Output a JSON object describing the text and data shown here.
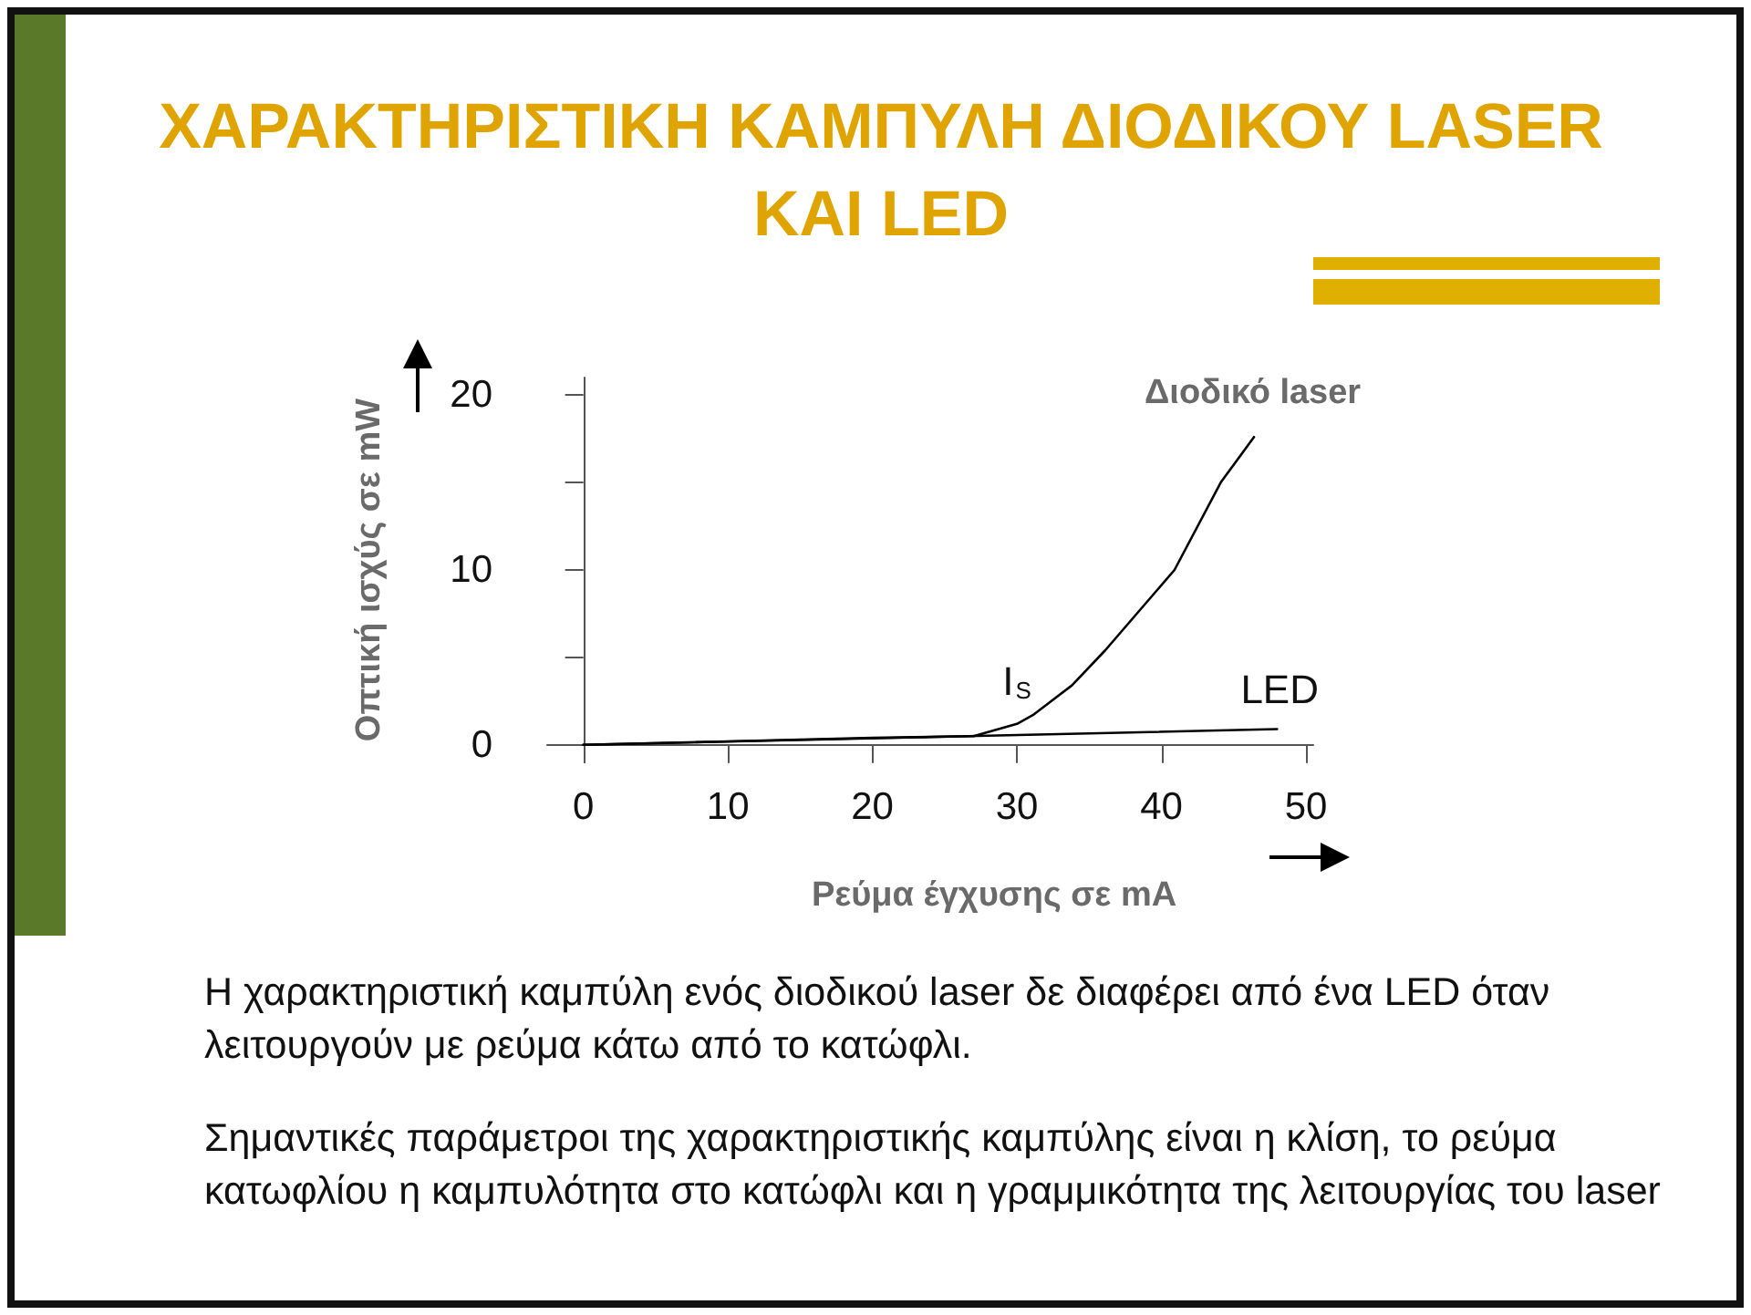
{
  "chart_data": {
    "type": "line",
    "title": "ΧΑΡΑΚΤΗΡΙΣΤΙΚΗ ΚΑΜΠΥΛΗ ΔΙΟΔΙΚΟΥ LASER ΚΑΙ LED",
    "xlabel": "Ρεύμα έγχυσης σε mA",
    "ylabel": "Οπτική ισχύς σε mW",
    "xlim": [
      -2.5,
      50.5
    ],
    "xticks": [
      0,
      10,
      20,
      30,
      40,
      50
    ],
    "ylim": [
      -1,
      21
    ],
    "yticks": [
      0,
      {
        "value": 5,
        "label": null
      },
      10,
      {
        "value": 15,
        "label": null
      },
      20
    ],
    "grid": false,
    "legend": false,
    "marker": "none",
    "line_style": "solid",
    "series": [
      {
        "name": "Διοδικό laser",
        "color": "#000000",
        "x": [
          0,
          10,
          20,
          27,
          30,
          31.1,
          33.8,
          36.1,
          40.9,
          44.1,
          46.4
        ],
        "values": [
          0,
          0.2,
          0.4,
          0.5,
          1.2,
          1.7,
          3.4,
          5.4,
          10,
          15,
          17.6
        ]
      },
      {
        "name": "LED",
        "color": "#000000",
        "x": [
          0,
          48
        ],
        "values": [
          0,
          0.9
        ]
      }
    ],
    "annotations": [
      {
        "text": "I$_{S}$",
        "x": 30,
        "y": 1.2
      },
      "Η χαρακτηριστική καμπύλη ενός διοδικού laser δε διαφέρει από ένα LED όταν λειτουργούν με ρεύμα κάτω από το κατώφλι.",
      "Σημαντικές παράμετροι της χαρακτηριστικής καμπύλης είναι η κλίση, το ρεύμα κατωφλίου η καμπυλότητα στο κατώφλι και η γραμμικότητα  της λειτουργίας του laser"
    ]
  }
}
